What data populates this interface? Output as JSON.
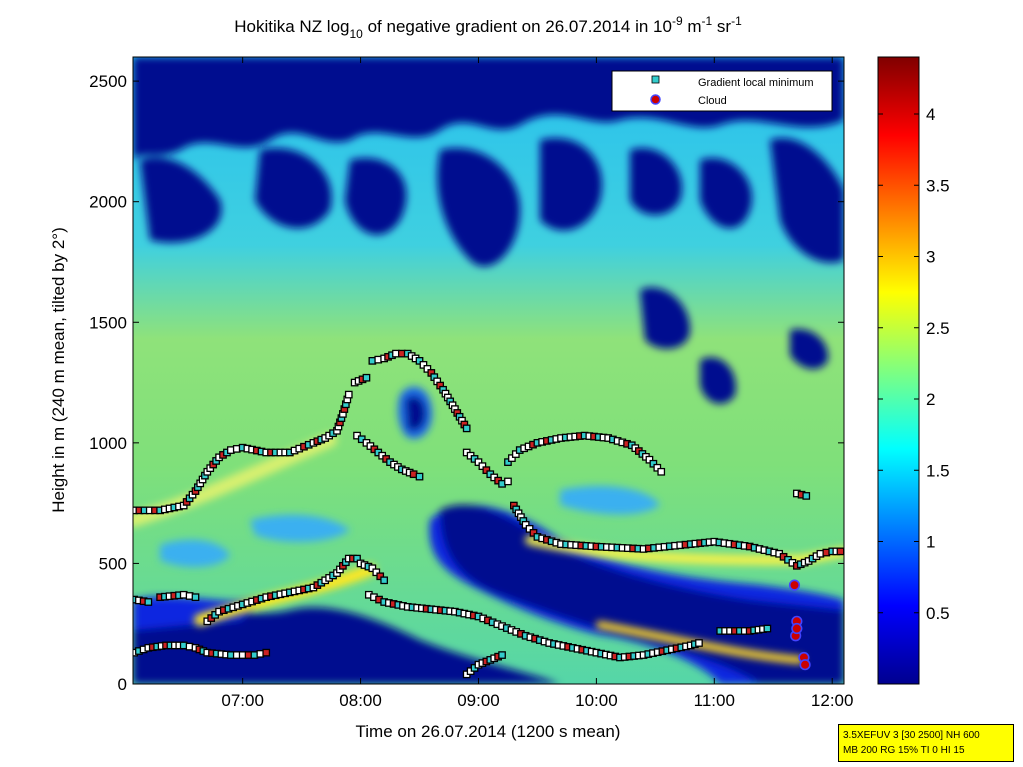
{
  "chart_data": {
    "type": "heatmap",
    "title": {
      "part1": "Hokitika NZ log",
      "sub": "10",
      "part2": " of negative gradient on 26.07.2014 in 10",
      "sup1": "-9",
      "part3": " m",
      "sup2": "-1",
      "part4": " sr",
      "sup3": "-1"
    },
    "xlabel": "Time on 26.07.2014 (1200 s mean)",
    "ylabel": "Height in m (240 m mean, tilted by 2°)",
    "xlim_hours": [
      6.07,
      12.1
    ],
    "ylim": [
      0,
      2600
    ],
    "x_ticks": [
      {
        "value": 7,
        "label": "07:00"
      },
      {
        "value": 8,
        "label": "08:00"
      },
      {
        "value": 9,
        "label": "09:00"
      },
      {
        "value": 10,
        "label": "10:00"
      },
      {
        "value": 11,
        "label": "11:00"
      },
      {
        "value": 12,
        "label": "12:00"
      }
    ],
    "y_ticks": [
      {
        "value": 0,
        "label": "0"
      },
      {
        "value": 500,
        "label": "500"
      },
      {
        "value": 1000,
        "label": "1000"
      },
      {
        "value": 1500,
        "label": "1500"
      },
      {
        "value": 2000,
        "label": "2000"
      },
      {
        "value": 2500,
        "label": "2500"
      }
    ],
    "colorbar": {
      "range": [
        0,
        4.4
      ],
      "ticks": [
        {
          "value": 0.5,
          "label": "0.5"
        },
        {
          "value": 1,
          "label": "1"
        },
        {
          "value": 1.5,
          "label": "1.5"
        },
        {
          "value": 2,
          "label": "2"
        },
        {
          "value": 2.5,
          "label": "2.5"
        },
        {
          "value": 3,
          "label": "3"
        },
        {
          "value": 3.5,
          "label": "3.5"
        },
        {
          "value": 4,
          "label": "4"
        }
      ]
    },
    "legend": {
      "placement": "top-right",
      "entries": [
        {
          "name": "Gradient local minimum",
          "marker": "square",
          "color": "#33cccc"
        },
        {
          "name": "Cloud",
          "marker": "circle",
          "color": "#cc0000"
        }
      ]
    },
    "gradient_minimum_tracks": [
      {
        "x": [
          6.08,
          6.3,
          6.5,
          6.6,
          6.7,
          6.8,
          6.9,
          7.0,
          7.2,
          7.4,
          7.6,
          7.7,
          7.8,
          7.85,
          7.9
        ],
        "y": [
          720,
          720,
          740,
          800,
          880,
          940,
          970,
          980,
          960,
          960,
          1000,
          1020,
          1050,
          1120,
          1200
        ]
      },
      {
        "x": [
          7.95,
          8.05
        ],
        "y": [
          1250,
          1270
        ]
      },
      {
        "x": [
          8.1,
          8.2,
          8.3,
          8.4,
          8.5,
          8.6,
          8.7,
          8.8,
          8.9
        ],
        "y": [
          1340,
          1350,
          1370,
          1370,
          1340,
          1290,
          1220,
          1140,
          1060
        ]
      },
      {
        "x": [
          7.97,
          8.05,
          8.15,
          8.25,
          8.35,
          8.45,
          8.5
        ],
        "y": [
          1030,
          1000,
          960,
          920,
          890,
          870,
          860
        ]
      },
      {
        "x": [
          8.9,
          9.0,
          9.1,
          9.2,
          9.25
        ],
        "y": [
          960,
          920,
          870,
          830,
          840
        ]
      },
      {
        "x": [
          9.25,
          9.35,
          9.5,
          9.7,
          9.9,
          10.1,
          10.3,
          10.45,
          10.55
        ],
        "y": [
          920,
          970,
          1000,
          1020,
          1030,
          1020,
          990,
          930,
          880
        ]
      },
      {
        "x": [
          9.3,
          9.4,
          9.5,
          9.7,
          10.0,
          10.4,
          10.8,
          11.0,
          11.3,
          11.55,
          11.7,
          11.8,
          11.9,
          12.0,
          12.07
        ],
        "y": [
          740,
          660,
          610,
          580,
          570,
          560,
          580,
          590,
          570,
          540,
          490,
          510,
          540,
          550,
          550
        ]
      },
      {
        "x": [
          11.7,
          11.78
        ],
        "y": [
          790,
          780
        ]
      },
      {
        "x": [
          6.08,
          6.2
        ],
        "y": [
          350,
          340
        ]
      },
      {
        "x": [
          6.3,
          6.5,
          6.6
        ],
        "y": [
          360,
          370,
          360
        ]
      },
      {
        "x": [
          6.7,
          6.8,
          7.0,
          7.2,
          7.4,
          7.6,
          7.8,
          7.9,
          7.97,
          8.0,
          8.1,
          8.2
        ],
        "y": [
          260,
          300,
          330,
          360,
          380,
          400,
          460,
          520,
          520,
          500,
          480,
          430
        ]
      },
      {
        "x": [
          8.07,
          8.2,
          8.4,
          8.6,
          8.8,
          9.0,
          9.2,
          9.4,
          9.6,
          9.8,
          10.0,
          10.2,
          10.4,
          10.6,
          10.8,
          10.87
        ],
        "y": [
          370,
          340,
          320,
          310,
          300,
          280,
          240,
          200,
          170,
          150,
          130,
          110,
          120,
          140,
          160,
          170
        ]
      },
      {
        "x": [
          11.05,
          11.3,
          11.45
        ],
        "y": [
          220,
          220,
          230
        ]
      },
      {
        "x": [
          6.08,
          6.2,
          6.35,
          6.5,
          6.6,
          6.7,
          6.9,
          7.0,
          7.1,
          7.2
        ],
        "y": [
          130,
          150,
          160,
          160,
          150,
          130,
          120,
          120,
          120,
          130
        ]
      },
      {
        "x": [
          8.9,
          9.0,
          9.1,
          9.2
        ],
        "y": [
          40,
          80,
          100,
          120
        ]
      }
    ],
    "cloud_points": {
      "x": [
        11.68,
        11.7,
        11.69,
        11.7,
        11.76,
        11.77
      ],
      "y": [
        410,
        260,
        200,
        230,
        110,
        80
      ]
    }
  },
  "info_box": {
    "line1": "3.5XEFUV 3 [30 2500] NH 600",
    "line2": "MB 200 RG 15% TI 0 HI 15"
  }
}
